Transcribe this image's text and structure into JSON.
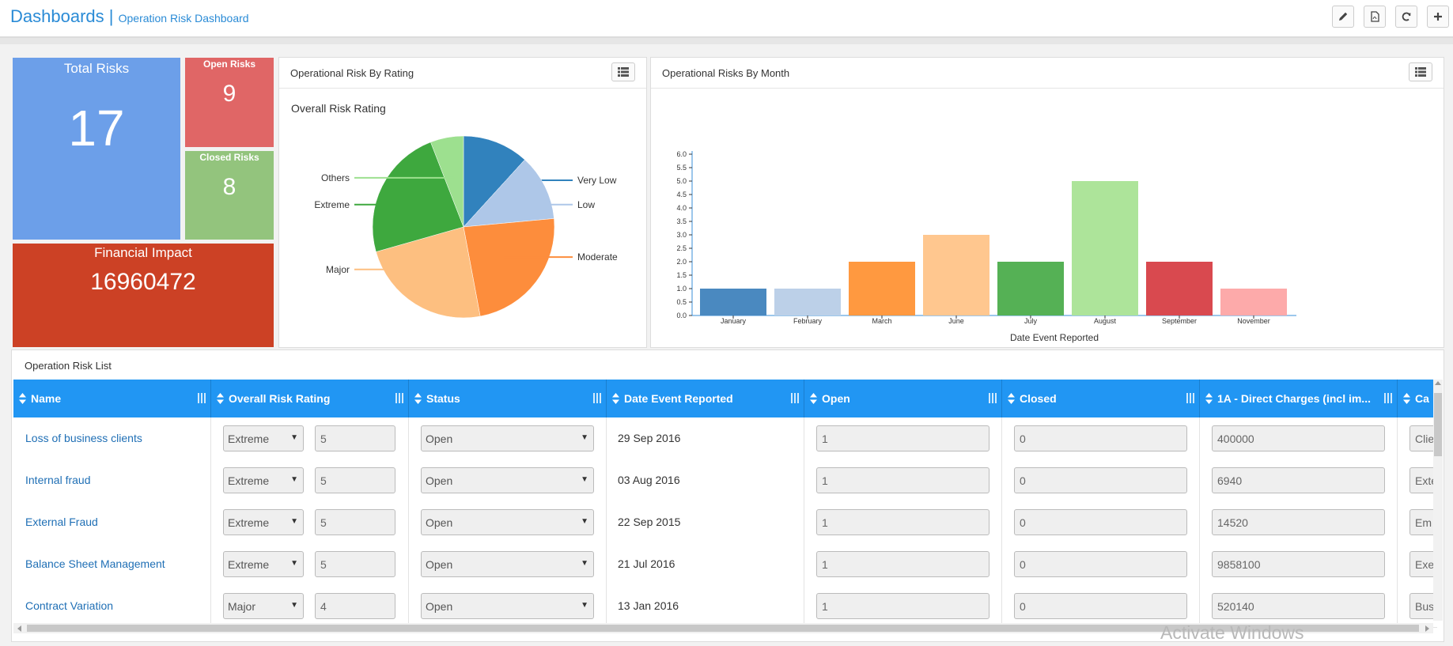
{
  "header": {
    "title": "Dashboards",
    "separator": "|",
    "subtitle": "Operation Risk Dashboard"
  },
  "tiles": {
    "total_risks": {
      "label": "Total Risks",
      "value": "17",
      "color": "#6c9fe9"
    },
    "open_risks": {
      "label": "Open Risks",
      "value": "9",
      "color": "#e06666"
    },
    "closed_risks": {
      "label": "Closed Risks",
      "value": "8",
      "color": "#93c47d"
    },
    "financial_impact": {
      "label": "Financial Impact",
      "value": "16960472",
      "color": "#cc4125"
    }
  },
  "rating_panel": {
    "title": "Operational Risk By Rating"
  },
  "month_panel": {
    "title": "Operational Risks By Month"
  },
  "chart_data": [
    {
      "type": "pie",
      "title": "Overall Risk Rating",
      "categories": [
        "Very Low",
        "Low",
        "Moderate",
        "Major",
        "Extreme",
        "Others"
      ],
      "values": [
        2,
        2,
        4,
        4,
        4,
        1
      ],
      "colors": [
        "#3182bd",
        "#aec7e8",
        "#fd8d3c",
        "#fdbf80",
        "#3ea83e",
        "#9de08f"
      ]
    },
    {
      "type": "bar",
      "categories": [
        "January",
        "February",
        "March",
        "June",
        "July",
        "August",
        "September",
        "November"
      ],
      "values": [
        1,
        1,
        2,
        3,
        2,
        5,
        2,
        1
      ],
      "colors": [
        "#4a89c0",
        "#bcd0e8",
        "#ff9940",
        "#ffc78f",
        "#55b155",
        "#ade49a",
        "#d9494f",
        "#fdaaaa"
      ],
      "xlabel": "Date Event Reported",
      "ylabel": "",
      "ylim": [
        0,
        6
      ],
      "yticks": [
        "0.0",
        "0.5",
        "1.0",
        "1.5",
        "2.0",
        "2.5",
        "3.0",
        "3.5",
        "4.0",
        "4.5",
        "5.0",
        "5.5",
        "6.0"
      ]
    }
  ],
  "list": {
    "title": "Operation Risk List",
    "columns": [
      "Name",
      "Overall Risk Rating",
      "Status",
      "Date Event Reported",
      "Open",
      "Closed",
      "1A - Direct Charges (incl im...",
      "Ca"
    ],
    "rows": [
      {
        "name": "Loss of business clients",
        "rating": "Extreme",
        "score": "5",
        "status": "Open",
        "date": "29 Sep 2016",
        "open": "1",
        "closed": "0",
        "charges": "400000",
        "cat": "Clie"
      },
      {
        "name": "Internal fraud",
        "rating": "Extreme",
        "score": "5",
        "status": "Open",
        "date": "03 Aug 2016",
        "open": "1",
        "closed": "0",
        "charges": "6940",
        "cat": "Exte"
      },
      {
        "name": "External Fraud",
        "rating": "Extreme",
        "score": "5",
        "status": "Open",
        "date": "22 Sep 2015",
        "open": "1",
        "closed": "0",
        "charges": "14520",
        "cat": "Em"
      },
      {
        "name": "Balance Sheet Management",
        "rating": "Extreme",
        "score": "5",
        "status": "Open",
        "date": "21 Jul 2016",
        "open": "1",
        "closed": "0",
        "charges": "9858100",
        "cat": "Exe"
      },
      {
        "name": "Contract Variation",
        "rating": "Major",
        "score": "4",
        "status": "Open",
        "date": "13 Jan 2016",
        "open": "1",
        "closed": "0",
        "charges": "520140",
        "cat": "Bus"
      }
    ]
  },
  "watermark": "Activate Windows"
}
